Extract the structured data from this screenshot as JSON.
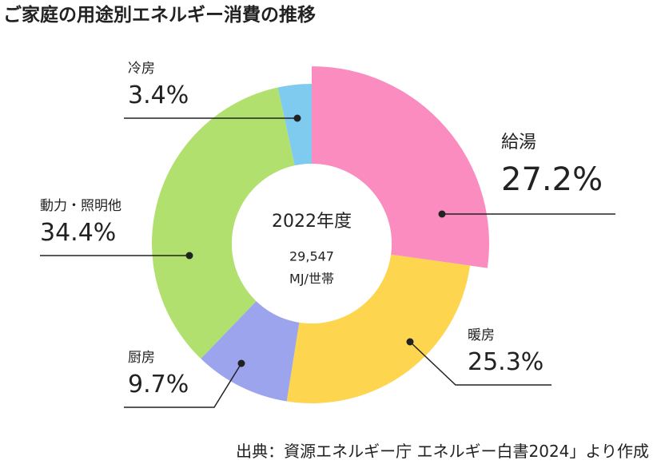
{
  "chart_data": {
    "type": "donut",
    "title": "ご家庭の用途別エネルギー消費の推移",
    "center_title": "2022年度",
    "center_value": "29,547",
    "center_unit": "MJ/世帯",
    "categories": [
      "給湯",
      "暖房",
      "厨房",
      "動力・照明他",
      "冷房"
    ],
    "values": [
      27.2,
      25.3,
      9.7,
      34.4,
      3.4
    ],
    "value_labels": [
      "27.2%",
      "25.3%",
      "9.7%",
      "34.4%",
      "3.4%"
    ],
    "colors": [
      "#fb8cc0",
      "#fdd54f",
      "#9ba4ec",
      "#b1e06f",
      "#7fcbef"
    ],
    "source": "出典：資源エネルギー庁 エネルギー白書2024」より作成"
  }
}
